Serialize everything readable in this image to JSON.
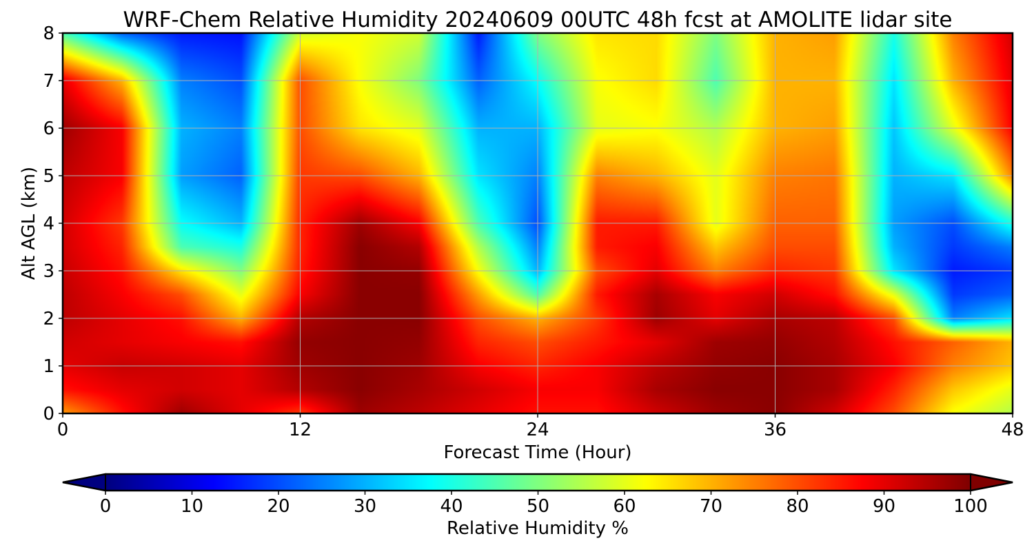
{
  "chart_data": {
    "type": "heatmap",
    "title": "WRF-Chem Relative Humidity 20240609 00UTC 48h fcst at AMOLITE lidar site",
    "xlabel": "Forecast Time (Hour)",
    "ylabel": "Alt AGL (km)",
    "xlim": [
      0,
      48
    ],
    "ylim": [
      0,
      8
    ],
    "xticks": [
      0,
      12,
      24,
      36,
      48
    ],
    "yticks": [
      0,
      1,
      2,
      3,
      4,
      5,
      6,
      7,
      8
    ],
    "grid": true,
    "x": [
      0,
      3,
      6,
      9,
      12,
      15,
      18,
      21,
      24,
      27,
      30,
      33,
      36,
      39,
      42,
      45,
      48
    ],
    "y": [
      0,
      0.5,
      1,
      1.5,
      2,
      2.5,
      3,
      3.5,
      4,
      5,
      6,
      7,
      8
    ],
    "z": [
      [
        72,
        86,
        97,
        90,
        82,
        97,
        94,
        90,
        86,
        86,
        92,
        97,
        99,
        92,
        80,
        62,
        55
      ],
      [
        86,
        90,
        92,
        90,
        95,
        99,
        96,
        92,
        88,
        88,
        96,
        99,
        99,
        96,
        84,
        68,
        60
      ],
      [
        90,
        93,
        92,
        90,
        97,
        99,
        97,
        88,
        84,
        88,
        94,
        98,
        99,
        96,
        88,
        75,
        68
      ],
      [
        92,
        90,
        88,
        86,
        98,
        99,
        98,
        84,
        80,
        85,
        90,
        97,
        98,
        95,
        86,
        78,
        70
      ],
      [
        94,
        90,
        86,
        70,
        95,
        99,
        99,
        80,
        70,
        82,
        97,
        90,
        96,
        94,
        80,
        25,
        35
      ],
      [
        94,
        88,
        80,
        60,
        88,
        99,
        99,
        72,
        45,
        85,
        96,
        88,
        92,
        86,
        60,
        18,
        22
      ],
      [
        93,
        86,
        65,
        50,
        85,
        99,
        98,
        62,
        30,
        80,
        90,
        75,
        84,
        82,
        35,
        15,
        18
      ],
      [
        92,
        84,
        45,
        40,
        84,
        99,
        95,
        55,
        25,
        85,
        88,
        68,
        80,
        80,
        30,
        18,
        25
      ],
      [
        92,
        82,
        38,
        30,
        84,
        97,
        88,
        45,
        20,
        85,
        85,
        60,
        78,
        78,
        28,
        20,
        40
      ],
      [
        94,
        88,
        28,
        22,
        82,
        80,
        70,
        35,
        25,
        75,
        70,
        60,
        75,
        76,
        30,
        35,
        75
      ],
      [
        97,
        88,
        30,
        25,
        80,
        65,
        60,
        30,
        30,
        60,
        62,
        55,
        70,
        72,
        32,
        60,
        88
      ],
      [
        90,
        70,
        25,
        20,
        80,
        62,
        50,
        22,
        38,
        62,
        66,
        45,
        70,
        70,
        35,
        70,
        90
      ],
      [
        45,
        22,
        15,
        14,
        58,
        62,
        58,
        15,
        50,
        65,
        66,
        50,
        70,
        72,
        40,
        75,
        92
      ]
    ],
    "colorbar": {
      "label": "Relative Humidity %",
      "ticks": [
        0,
        10,
        20,
        30,
        40,
        50,
        60,
        70,
        80,
        90,
        100
      ],
      "extend": "both",
      "colormap": "jet",
      "range": [
        0,
        100
      ]
    }
  }
}
